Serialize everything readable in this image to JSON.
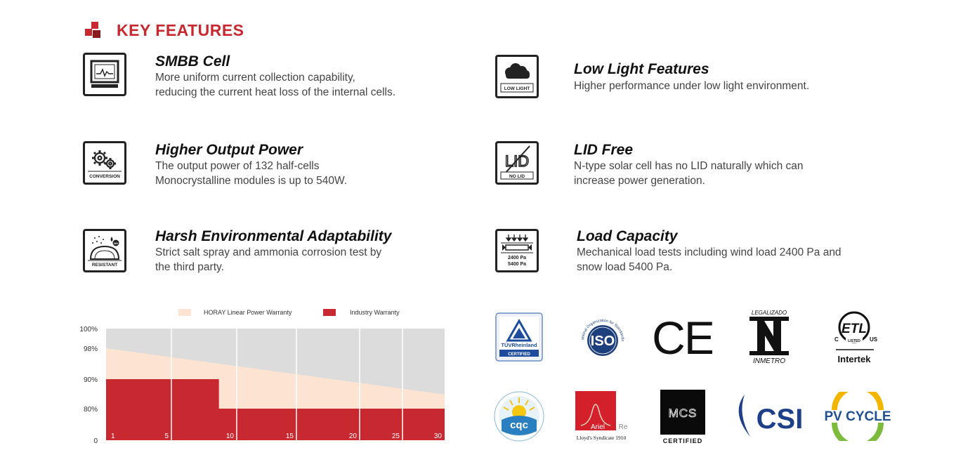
{
  "section": {
    "title": "KEY FEATURES"
  },
  "features": [
    {
      "title": "SMBB Cell",
      "lines": [
        "More uniform current collection capability,",
        "reducing the current heat loss of the internal cells."
      ],
      "icon": "monitor-chart-icon",
      "icon_label": ""
    },
    {
      "title": "Low Light Features",
      "lines": [
        "Higher performance under low light environment."
      ],
      "icon": "clouds-icon",
      "icon_label": "LOW LIGHT"
    },
    {
      "title": "Higher Output Power",
      "lines": [
        "The output power of 132 half-cells",
        "Monocrystalline modules is up to 540W."
      ],
      "icon": "gears-icon",
      "icon_label": "CONVERSION"
    },
    {
      "title": "LID Free",
      "lines": [
        "N-type solar cell has no LID naturally which can",
        "increase power generation."
      ],
      "icon": "no-lid-icon",
      "icon_label": "NO LID",
      "icon_text": "LID"
    },
    {
      "title": "Harsh Environmental Adaptability",
      "lines": [
        "Strict salt spray and ammonia corrosion test by",
        "the third party."
      ],
      "icon": "dome-resistant-icon",
      "icon_label": "RESISTANT",
      "icon_badge": "NH"
    },
    {
      "title": "Load Capacity",
      "lines": [
        "Mechanical load tests including wind load 2400 Pa and",
        "snow load 5400 Pa."
      ],
      "icon": "load-panel-icon",
      "icon_label": "",
      "icon_lines": [
        "2400 Pa",
        "5400 Pa"
      ]
    }
  ],
  "chart_data": {
    "type": "area",
    "legend": [
      {
        "name": "HORAY Linear Power Warranty",
        "color": "#fde3d2"
      },
      {
        "name": "Industry Warranty",
        "color": "#c8282f"
      }
    ],
    "legend_position": "top",
    "y_tick_labels": [
      "100%",
      "98%",
      "90%",
      "80%",
      "0"
    ],
    "x_tick_labels": [
      "1",
      "5",
      "10",
      "15",
      "20",
      "25",
      "30"
    ],
    "ylim": [
      0,
      100
    ],
    "background_color": "#dcdcdc",
    "series": [
      {
        "name": "HORAY Linear Power Warranty",
        "x": [
          0,
          30
        ],
        "y": [
          98,
          84.8
        ]
      },
      {
        "name": "Industry Warranty",
        "x": [
          0,
          10,
          10,
          30
        ],
        "y": [
          90,
          90,
          80,
          80
        ]
      }
    ]
  },
  "certifications": [
    {
      "name": "TUV Rheinland",
      "texts": [
        "TÜVRheinland",
        "CERTIFIED"
      ],
      "icon": "tuv-rheinland-logo"
    },
    {
      "name": "ISO",
      "texts": [
        "ISO",
        "International Organization for Standardization"
      ],
      "icon": "iso-logo"
    },
    {
      "name": "CE",
      "texts": [
        "CE"
      ],
      "icon": "ce-mark-logo"
    },
    {
      "name": "INMETRO",
      "texts": [
        "LEGALIZADO",
        "INMETRO"
      ],
      "icon": "inmetro-logo"
    },
    {
      "name": "Intertek ETL",
      "texts": [
        "ETL",
        "LISTED",
        "C",
        "US",
        "Intertek"
      ],
      "icon": "intertek-etl-logo"
    },
    {
      "name": "CQC",
      "texts": [
        "cqc"
      ],
      "icon": "cqc-logo"
    },
    {
      "name": "Ariel Re",
      "texts": [
        "Ariel",
        "Re",
        "Lloyd's Syndicate 1910"
      ],
      "icon": "ariel-re-logo"
    },
    {
      "name": "MCS",
      "texts": [
        "MCS",
        "CERTIFIED"
      ],
      "icon": "mcs-logo"
    },
    {
      "name": "CSI",
      "texts": [
        "CSI"
      ],
      "icon": "csi-logo"
    },
    {
      "name": "PV CYCLE",
      "texts": [
        "PV CYCLE"
      ],
      "icon": "pv-cycle-logo"
    }
  ],
  "colors": {
    "accent": "#c8282f",
    "chart_bg": "#dcdcdc",
    "warranty_fill": "#fde3d2"
  }
}
